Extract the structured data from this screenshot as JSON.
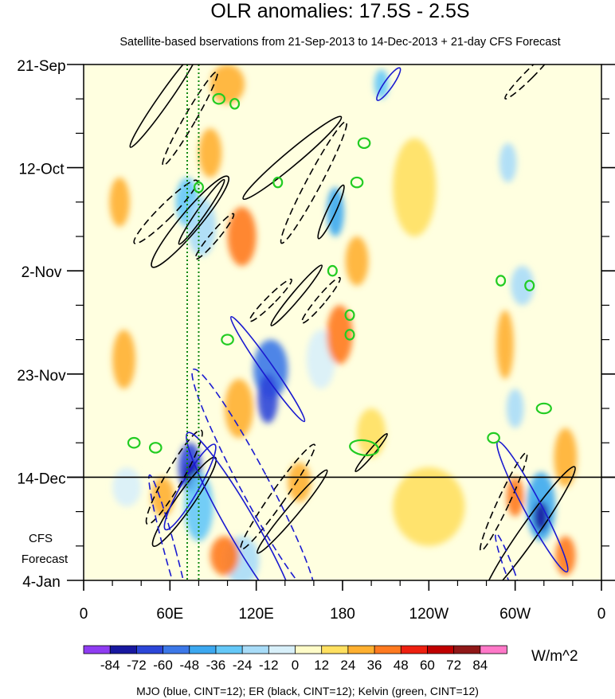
{
  "chart_data": {
    "type": "heatmap",
    "title": "OLR anomalies: 17.5S - 2.5S",
    "subtitle": "Satellite-based bservations from 21-Sep-2013 to 14-Dec-2013 + 21-day CFS Forecast",
    "x_range_lon": [
      0,
      360
    ],
    "x_ticks": [
      {
        "lon": 0,
        "label": "0"
      },
      {
        "lon": 60,
        "label": "60E"
      },
      {
        "lon": 120,
        "label": "120E"
      },
      {
        "lon": 180,
        "label": "180"
      },
      {
        "lon": 240,
        "label": "120W"
      },
      {
        "lon": 300,
        "label": "60W"
      },
      {
        "lon": 360,
        "label": "0"
      }
    ],
    "y_range_days": [
      0,
      105
    ],
    "y_ticks": [
      {
        "day": 0,
        "label": "21-Sep"
      },
      {
        "day": 21,
        "label": "12-Oct"
      },
      {
        "day": 42,
        "label": "2-Nov"
      },
      {
        "day": 63,
        "label": "23-Nov"
      },
      {
        "day": 84,
        "label": "14-Dec"
      },
      {
        "day": 105,
        "label": "4-Jan"
      }
    ],
    "forecast_start_day": 84,
    "forecast_label_lines": [
      "CFS",
      "Forecast"
    ],
    "green_dotted_lons": [
      72,
      80
    ],
    "units": "W/m^2",
    "colorbar": {
      "labels": [
        "-84",
        "-72",
        "-60",
        "-48",
        "-36",
        "-24",
        "-12",
        "0",
        "12",
        "24",
        "36",
        "48",
        "60",
        "72",
        "84"
      ],
      "colors": [
        "#8f3cf2",
        "#1818a0",
        "#2c46d8",
        "#3c78e8",
        "#3ca8f0",
        "#64c8f8",
        "#a8dcf8",
        "#d8f0fa",
        "#fffcc8",
        "#ffe060",
        "#ffb030",
        "#ff7a20",
        "#ee2010",
        "#c00000",
        "#901818",
        "#ff78c8"
      ]
    },
    "footnote": "MJO (blue, CINT=12); ER (black, CINT=12); Kelvin (green, CINT=12)",
    "anomaly_blobs": [
      {
        "lon": 72,
        "day": 28,
        "rx": 8,
        "ry": 5,
        "value": -36
      },
      {
        "lon": 82,
        "day": 33,
        "rx": 10,
        "ry": 6,
        "value": -24
      },
      {
        "lon": 130,
        "day": 62,
        "rx": 12,
        "ry": 6,
        "value": -60
      },
      {
        "lon": 128,
        "day": 68,
        "rx": 7,
        "ry": 5,
        "value": -72
      },
      {
        "lon": 175,
        "day": 30,
        "rx": 6,
        "ry": 5,
        "value": -48
      },
      {
        "lon": 207,
        "day": 4,
        "rx": 5,
        "ry": 3,
        "value": -36
      },
      {
        "lon": 74,
        "day": 82,
        "rx": 8,
        "ry": 5,
        "value": -72
      },
      {
        "lon": 75,
        "day": 84,
        "rx": 5,
        "ry": 3,
        "value": -84
      },
      {
        "lon": 80,
        "day": 90,
        "rx": 10,
        "ry": 7,
        "value": -36
      },
      {
        "lon": 110,
        "day": 101,
        "rx": 12,
        "ry": 5,
        "value": -24
      },
      {
        "lon": 318,
        "day": 90,
        "rx": 10,
        "ry": 7,
        "value": -48
      },
      {
        "lon": 318,
        "day": 92,
        "rx": 5,
        "ry": 3,
        "value": -84
      },
      {
        "lon": 305,
        "day": 45,
        "rx": 8,
        "ry": 4,
        "value": -24
      },
      {
        "lon": 295,
        "day": 20,
        "rx": 6,
        "ry": 4,
        "value": -24
      },
      {
        "lon": 300,
        "day": 70,
        "rx": 6,
        "ry": 4,
        "value": -24
      },
      {
        "lon": 165,
        "day": 60,
        "rx": 10,
        "ry": 6,
        "value": -12
      },
      {
        "lon": 30,
        "day": 86,
        "rx": 10,
        "ry": 4,
        "value": -12
      },
      {
        "lon": 100,
        "day": 4,
        "rx": 12,
        "ry": 4,
        "value": 24
      },
      {
        "lon": 88,
        "day": 18,
        "rx": 8,
        "ry": 5,
        "value": 24
      },
      {
        "lon": 110,
        "day": 35,
        "rx": 10,
        "ry": 6,
        "value": 36
      },
      {
        "lon": 108,
        "day": 70,
        "rx": 10,
        "ry": 6,
        "value": 24
      },
      {
        "lon": 98,
        "day": 100,
        "rx": 10,
        "ry": 4,
        "value": 36
      },
      {
        "lon": 178,
        "day": 55,
        "rx": 9,
        "ry": 6,
        "value": 36
      },
      {
        "lon": 190,
        "day": 40,
        "rx": 8,
        "ry": 5,
        "value": 24
      },
      {
        "lon": 28,
        "day": 60,
        "rx": 8,
        "ry": 6,
        "value": 24
      },
      {
        "lon": 25,
        "day": 28,
        "rx": 7,
        "ry": 5,
        "value": 24
      },
      {
        "lon": 55,
        "day": 88,
        "rx": 8,
        "ry": 4,
        "value": 24
      },
      {
        "lon": 335,
        "day": 100,
        "rx": 7,
        "ry": 4,
        "value": 36
      },
      {
        "lon": 335,
        "day": 80,
        "rx": 8,
        "ry": 6,
        "value": 24
      },
      {
        "lon": 293,
        "day": 57,
        "rx": 6,
        "ry": 7,
        "value": 24
      },
      {
        "lon": 300,
        "day": 88,
        "rx": 6,
        "ry": 4,
        "value": 36
      },
      {
        "lon": 150,
        "day": 85,
        "rx": 8,
        "ry": 4,
        "value": 24
      },
      {
        "lon": 200,
        "day": 75,
        "rx": 10,
        "ry": 5,
        "value": 12
      },
      {
        "lon": 240,
        "day": 90,
        "rx": 25,
        "ry": 8,
        "value": 12
      },
      {
        "lon": 230,
        "day": 25,
        "rx": 15,
        "ry": 10,
        "value": 12
      }
    ],
    "wave_contours": [
      {
        "wave": "ER",
        "color": "#000000",
        "style": "solid",
        "lon": 56,
        "day": 7,
        "rx": 4,
        "ry": 12,
        "angle": 35
      },
      {
        "wave": "ER",
        "color": "#000000",
        "style": "dashed",
        "lon": 74,
        "day": 11,
        "rx": 4,
        "ry": 11,
        "angle": 30
      },
      {
        "wave": "ER",
        "color": "#000000",
        "style": "solid",
        "lon": 145,
        "day": 19,
        "rx": 5,
        "ry": 13,
        "angle": 50
      },
      {
        "wave": "ER",
        "color": "#000000",
        "style": "dashed",
        "lon": 160,
        "day": 24,
        "rx": 5,
        "ry": 14,
        "angle": 28
      },
      {
        "wave": "ER",
        "color": "#000000",
        "style": "solid",
        "lon": 172,
        "day": 30,
        "rx": 3,
        "ry": 6,
        "angle": 25
      },
      {
        "wave": "ER",
        "color": "#000000",
        "style": "dashed",
        "lon": 57,
        "day": 30,
        "rx": 5,
        "ry": 9,
        "angle": 45
      },
      {
        "wave": "ER",
        "color": "#000000",
        "style": "solid",
        "lon": 74,
        "day": 32,
        "rx": 7,
        "ry": 12,
        "angle": 40
      },
      {
        "wave": "ER",
        "color": "#000000",
        "style": "solid",
        "lon": 82,
        "day": 30,
        "rx": 3,
        "ry": 8,
        "angle": 35
      },
      {
        "wave": "ER",
        "color": "#000000",
        "style": "dashed",
        "lon": 91,
        "day": 35,
        "rx": 3,
        "ry": 6,
        "angle": 40
      },
      {
        "wave": "ER",
        "color": "#000000",
        "style": "dashed",
        "lon": 130,
        "day": 48,
        "rx": 3,
        "ry": 6,
        "angle": 45
      },
      {
        "wave": "ER",
        "color": "#000000",
        "style": "solid",
        "lon": 148,
        "day": 47,
        "rx": 3,
        "ry": 8,
        "angle": 40
      },
      {
        "wave": "ER",
        "color": "#000000",
        "style": "dashed",
        "lon": 165,
        "day": 48,
        "rx": 3,
        "ry": 6,
        "angle": 40
      },
      {
        "wave": "ER",
        "color": "#000000",
        "style": "dashed",
        "lon": 63,
        "day": 84,
        "rx": 6,
        "ry": 11,
        "angle": 30
      },
      {
        "wave": "ER",
        "color": "#000000",
        "style": "solid",
        "lon": 70,
        "day": 89,
        "rx": 6,
        "ry": 11,
        "angle": 35
      },
      {
        "wave": "ER",
        "color": "#000000",
        "style": "dashed",
        "lon": 135,
        "day": 88,
        "rx": 5,
        "ry": 13,
        "angle": 35
      },
      {
        "wave": "ER",
        "color": "#000000",
        "style": "solid",
        "lon": 145,
        "day": 91,
        "rx": 4,
        "ry": 11,
        "angle": 40
      },
      {
        "wave": "ER",
        "color": "#000000",
        "style": "dashed",
        "lon": 310,
        "day": 2,
        "rx": 3,
        "ry": 7,
        "angle": 45
      },
      {
        "wave": "ER",
        "color": "#000000",
        "style": "dashed",
        "lon": 292,
        "day": 89,
        "rx": 4,
        "ry": 11,
        "angle": 25
      },
      {
        "wave": "ER",
        "color": "#000000",
        "style": "solid",
        "lon": 310,
        "day": 95,
        "rx": 6,
        "ry": 16,
        "angle": 35
      },
      {
        "wave": "ER",
        "color": "#000000",
        "style": "solid",
        "lon": 200,
        "day": 79,
        "rx": 2,
        "ry": 5,
        "angle": 40
      },
      {
        "wave": "MJO",
        "color": "#1a1ad0",
        "style": "solid",
        "lon": 128,
        "day": 62,
        "rx": 4,
        "ry": 13,
        "angle": -35
      },
      {
        "wave": "MJO",
        "color": "#1a1ad0",
        "style": "solid",
        "lon": 74,
        "day": 86,
        "rx": 6,
        "ry": 10,
        "angle": 30
      },
      {
        "wave": "MJO",
        "color": "#1a1ad0",
        "style": "solid",
        "lon": 110,
        "day": 94,
        "rx": 10,
        "ry": 22,
        "angle": -30
      },
      {
        "wave": "MJO",
        "color": "#1a1ad0",
        "style": "dashed",
        "lon": 118,
        "day": 85,
        "rx": 10,
        "ry": 26,
        "angle": -28
      },
      {
        "wave": "MJO",
        "color": "#1a1ad0",
        "style": "dashed",
        "lon": 60,
        "day": 99,
        "rx": 4,
        "ry": 16,
        "angle": -15
      },
      {
        "wave": "MJO",
        "color": "#1a1ad0",
        "style": "solid",
        "lon": 312,
        "day": 90,
        "rx": 6,
        "ry": 15,
        "angle": -28
      },
      {
        "wave": "MJO",
        "color": "#1a1ad0",
        "style": "dashed",
        "lon": 296,
        "day": 103,
        "rx": 3,
        "ry": 8,
        "angle": -20
      },
      {
        "wave": "MJO",
        "color": "#1a1ad0",
        "style": "solid",
        "lon": 212,
        "day": 4,
        "rx": 3,
        "ry": 4,
        "angle": 35
      },
      {
        "wave": "Kelvin",
        "color": "#22cc22",
        "style": "solid",
        "lon": 94,
        "day": 7,
        "rx": 4,
        "ry": 1,
        "angle": 0
      },
      {
        "wave": "Kelvin",
        "color": "#22cc22",
        "style": "solid",
        "lon": 105,
        "day": 8,
        "rx": 3,
        "ry": 1,
        "angle": 0
      },
      {
        "wave": "Kelvin",
        "color": "#22cc22",
        "style": "solid",
        "lon": 195,
        "day": 16,
        "rx": 4,
        "ry": 1,
        "angle": 0
      },
      {
        "wave": "Kelvin",
        "color": "#22cc22",
        "style": "solid",
        "lon": 135,
        "day": 24,
        "rx": 3,
        "ry": 1,
        "angle": 0
      },
      {
        "wave": "Kelvin",
        "color": "#22cc22",
        "style": "solid",
        "lon": 190,
        "day": 24,
        "rx": 4,
        "ry": 1,
        "angle": 0
      },
      {
        "wave": "Kelvin",
        "color": "#22cc22",
        "style": "solid",
        "lon": 80,
        "day": 25,
        "rx": 3,
        "ry": 1,
        "angle": 0
      },
      {
        "wave": "Kelvin",
        "color": "#22cc22",
        "style": "solid",
        "lon": 173,
        "day": 42,
        "rx": 3,
        "ry": 1,
        "angle": 0
      },
      {
        "wave": "Kelvin",
        "color": "#22cc22",
        "style": "solid",
        "lon": 290,
        "day": 44,
        "rx": 3,
        "ry": 1,
        "angle": 0
      },
      {
        "wave": "Kelvin",
        "color": "#22cc22",
        "style": "solid",
        "lon": 310,
        "day": 45,
        "rx": 3,
        "ry": 1,
        "angle": 0
      },
      {
        "wave": "Kelvin",
        "color": "#22cc22",
        "style": "solid",
        "lon": 185,
        "day": 51,
        "rx": 3,
        "ry": 1,
        "angle": 0
      },
      {
        "wave": "Kelvin",
        "color": "#22cc22",
        "style": "solid",
        "lon": 185,
        "day": 55,
        "rx": 3,
        "ry": 1,
        "angle": 0
      },
      {
        "wave": "Kelvin",
        "color": "#22cc22",
        "style": "solid",
        "lon": 100,
        "day": 56,
        "rx": 4,
        "ry": 1,
        "angle": 0
      },
      {
        "wave": "Kelvin",
        "color": "#22cc22",
        "style": "solid",
        "lon": 320,
        "day": 70,
        "rx": 5,
        "ry": 1,
        "angle": 0
      },
      {
        "wave": "Kelvin",
        "color": "#22cc22",
        "style": "solid",
        "lon": 285,
        "day": 76,
        "rx": 4,
        "ry": 1,
        "angle": 0
      },
      {
        "wave": "Kelvin",
        "color": "#22cc22",
        "style": "solid",
        "lon": 195,
        "day": 78,
        "rx": 10,
        "ry": 1.5,
        "angle": 8
      },
      {
        "wave": "Kelvin",
        "color": "#22cc22",
        "style": "solid",
        "lon": 35,
        "day": 77,
        "rx": 4,
        "ry": 1,
        "angle": 0
      },
      {
        "wave": "Kelvin",
        "color": "#22cc22",
        "style": "solid",
        "lon": 50,
        "day": 78,
        "rx": 4,
        "ry": 1,
        "angle": 0
      }
    ]
  }
}
